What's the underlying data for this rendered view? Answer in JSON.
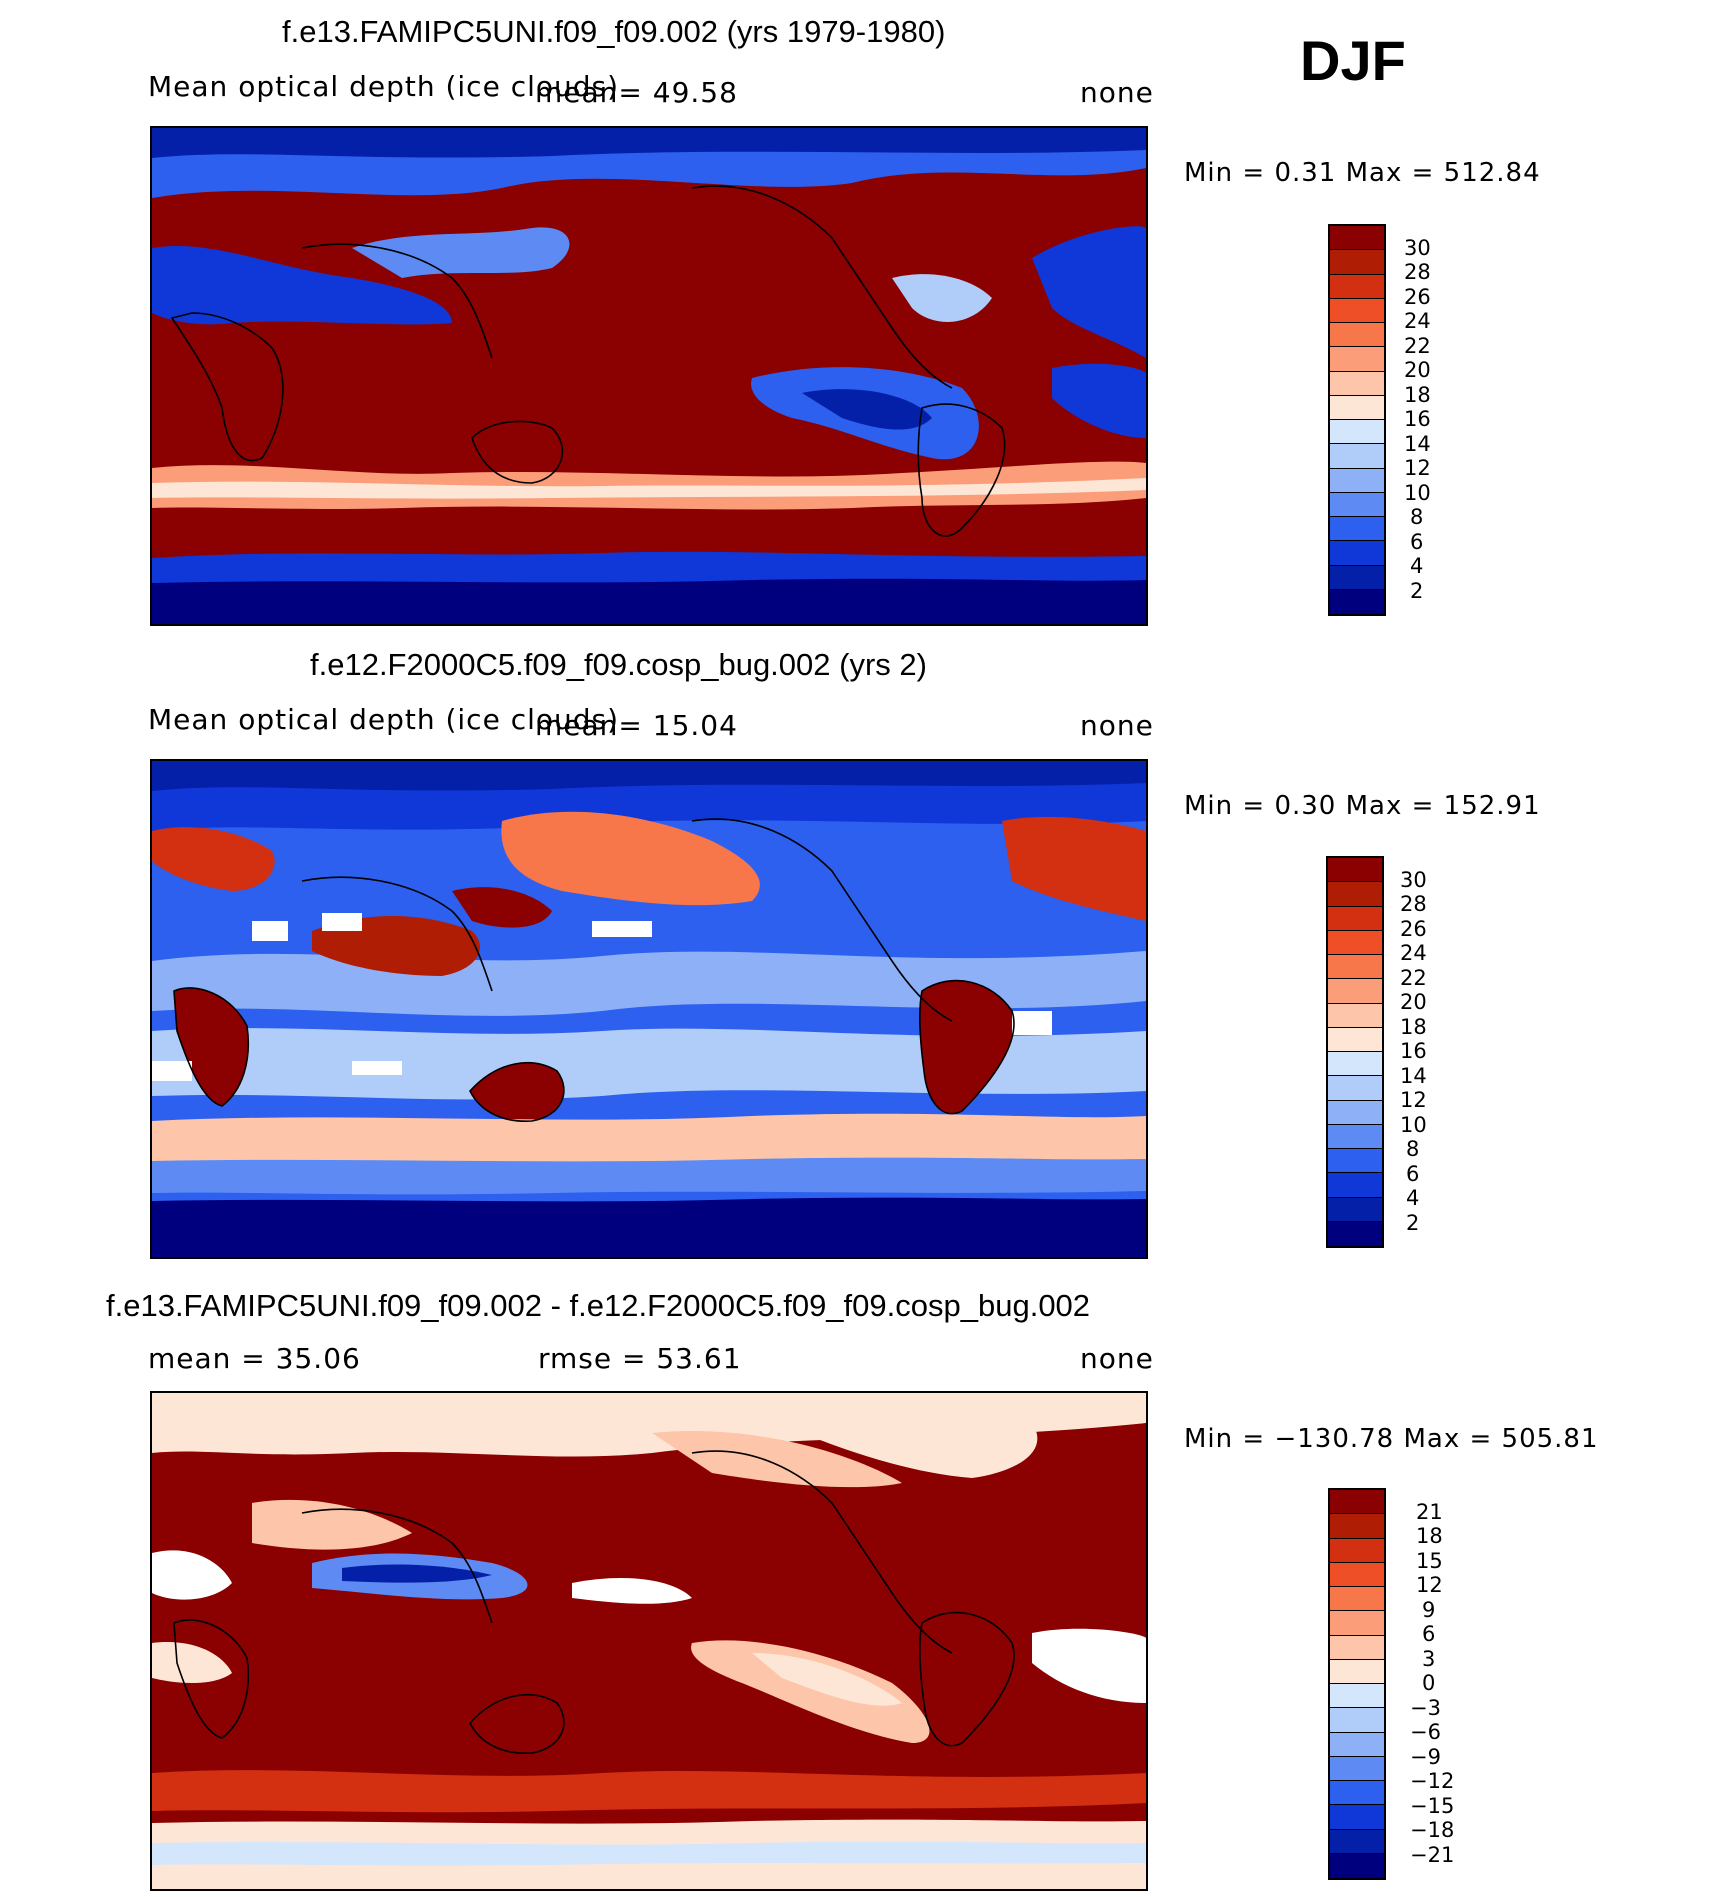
{
  "season": "DJF",
  "panels": [
    {
      "title": "f.e13.FAMIPC5UNI.f09_f09.002 (yrs 1979-1980)",
      "variable": "Mean optical depth (ice clouds)",
      "mean": "mean=   49.58",
      "rmse": "",
      "units": "none",
      "minmax": "Min =    0.31  Max  =  512.84",
      "colorbar": {
        "labels": [
          "30",
          "28",
          "26",
          "24",
          "22",
          "20",
          "18",
          "16",
          "14",
          "12",
          "10",
          "8",
          "6",
          "4",
          "2"
        ],
        "colors": [
          "#8b0000",
          "#b01d05",
          "#d32f11",
          "#ee4f26",
          "#f7774a",
          "#fb9d79",
          "#fdc6aa",
          "#fee6d6",
          "#d4e6fb",
          "#b0cdfa",
          "#8db0f7",
          "#5e8bf3",
          "#2d60ef",
          "#1038d9",
          "#0520a8",
          "#00007f"
        ]
      }
    },
    {
      "title": "f.e12.F2000C5.f09_f09.cosp_bug.002 (yrs 2)",
      "variable": "Mean optical depth (ice clouds)",
      "mean": "mean=   15.04",
      "rmse": "",
      "units": "none",
      "minmax": "Min =    0.30  Max  =  152.91",
      "colorbar": {
        "labels": [
          "30",
          "28",
          "26",
          "24",
          "22",
          "20",
          "18",
          "16",
          "14",
          "12",
          "10",
          "8",
          "6",
          "4",
          "2"
        ],
        "colors": [
          "#8b0000",
          "#b01d05",
          "#d32f11",
          "#ee4f26",
          "#f7774a",
          "#fb9d79",
          "#fdc6aa",
          "#fee6d6",
          "#d4e6fb",
          "#b0cdfa",
          "#8db0f7",
          "#5e8bf3",
          "#2d60ef",
          "#1038d9",
          "#0520a8",
          "#00007f"
        ]
      }
    },
    {
      "title": "f.e13.FAMIPC5UNI.f09_f09.002 - f.e12.F2000C5.f09_f09.cosp_bug.002",
      "variable": "",
      "mean": "mean =   35.06",
      "rmse": "rmse =   53.61",
      "units": "none",
      "minmax": "Min = −130.78  Max  =  505.81",
      "colorbar": {
        "labels": [
          "21",
          "18",
          "15",
          "12",
          "9",
          "6",
          "3",
          "0",
          "−3",
          "−6",
          "−9",
          "−12",
          "−15",
          "−18",
          "−21"
        ],
        "colors": [
          "#8b0000",
          "#b01d05",
          "#d32f11",
          "#ee4f26",
          "#f7774a",
          "#fb9d79",
          "#fdc6aa",
          "#fee6d6",
          "#d4e6fb",
          "#b0cdfa",
          "#8db0f7",
          "#5e8bf3",
          "#2d60ef",
          "#1038d9",
          "#0520a8",
          "#00007f"
        ]
      }
    }
  ]
}
